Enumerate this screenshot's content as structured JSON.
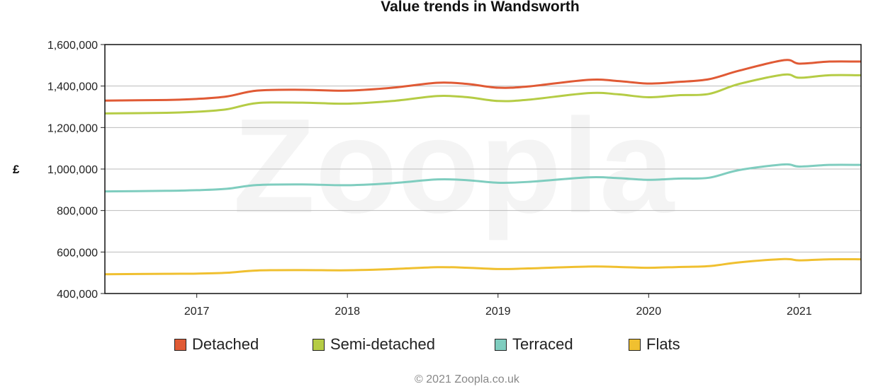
{
  "chart_data": {
    "type": "line",
    "title": "Value trends in Wandsworth",
    "ylabel": "£",
    "xlabel": "",
    "ylim": [
      400000,
      1600000
    ],
    "xlim": [
      2016.39,
      2021.41
    ],
    "yticks": [
      400000,
      600000,
      800000,
      1000000,
      1200000,
      1400000,
      1600000
    ],
    "ytick_labels": [
      "400,000",
      "600,000",
      "800,000",
      "1,000,000",
      "1,200,000",
      "1,400,000",
      "1,600,000"
    ],
    "xticks": [
      2017,
      2018,
      2019,
      2020,
      2021
    ],
    "xtick_labels": [
      "2017",
      "2018",
      "2019",
      "2020",
      "2021"
    ],
    "grid": "horizontal",
    "legend": "bottom",
    "x": [
      2016.39,
      2016.8,
      2017.0,
      2017.2,
      2017.4,
      2017.7,
      2018.0,
      2018.3,
      2018.6,
      2018.8,
      2019.0,
      2019.2,
      2019.6,
      2019.8,
      2020.0,
      2020.2,
      2020.4,
      2020.6,
      2020.9,
      2021.0,
      2021.2,
      2021.41
    ],
    "series": [
      {
        "name": "Detached",
        "color": "#e05a35",
        "values": [
          1330000,
          1333000,
          1338000,
          1350000,
          1378000,
          1382000,
          1378000,
          1392000,
          1416000,
          1410000,
          1392000,
          1398000,
          1430000,
          1424000,
          1412000,
          1420000,
          1433000,
          1474000,
          1525000,
          1508000,
          1518000,
          1518000
        ]
      },
      {
        "name": "Semi-detached",
        "color": "#b5cc45",
        "values": [
          1268000,
          1271000,
          1276000,
          1288000,
          1318000,
          1320000,
          1315000,
          1328000,
          1352000,
          1346000,
          1328000,
          1334000,
          1366000,
          1360000,
          1346000,
          1356000,
          1362000,
          1410000,
          1455000,
          1440000,
          1452000,
          1452000
        ]
      },
      {
        "name": "Terraced",
        "color": "#7fcdbf",
        "values": [
          892000,
          895000,
          898000,
          905000,
          923000,
          926000,
          922000,
          932000,
          950000,
          946000,
          934000,
          938000,
          960000,
          956000,
          948000,
          954000,
          958000,
          995000,
          1022000,
          1012000,
          1020000,
          1020000
        ]
      },
      {
        "name": "Flats",
        "color": "#f0c030",
        "values": [
          493000,
          495000,
          496000,
          500000,
          511000,
          513000,
          512000,
          518000,
          527000,
          524000,
          518000,
          521000,
          530000,
          528000,
          524000,
          528000,
          532000,
          550000,
          566000,
          560000,
          565000,
          565000
        ]
      }
    ]
  },
  "watermark": "Zoopla",
  "footer": "© 2021 Zoopla.co.uk"
}
